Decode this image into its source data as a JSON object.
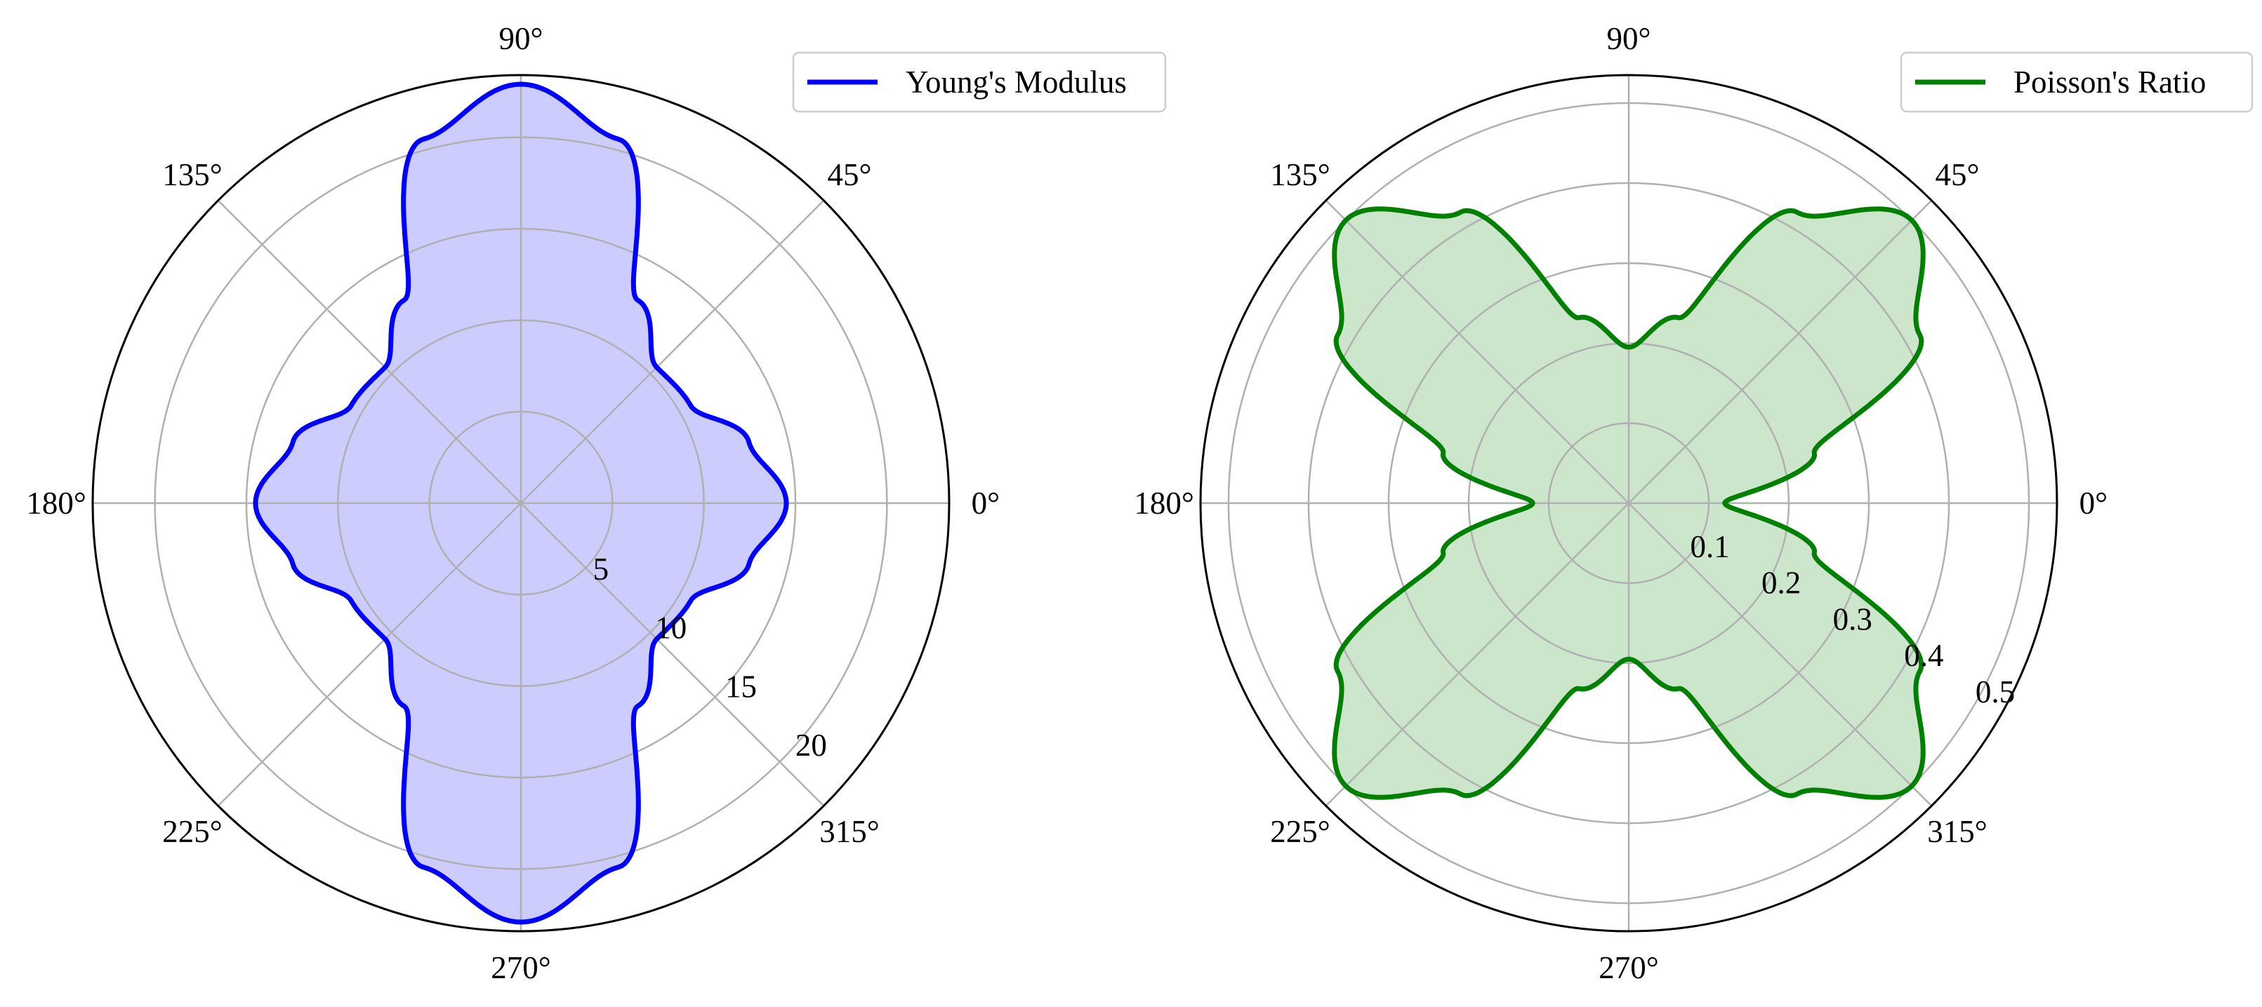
{
  "chart_data": [
    {
      "type": "polar",
      "angle_ticks_deg": [
        0,
        45,
        90,
        135,
        180,
        225,
        270,
        315
      ],
      "angle_tick_labels": [
        "0°",
        "45°",
        "90°",
        "135°",
        "180°",
        "225°",
        "270°",
        "315°"
      ],
      "r_ticks": [
        5,
        10,
        15,
        20
      ],
      "r_tick_labels": [
        "5",
        "10",
        "15",
        "20"
      ],
      "rlim": [
        0,
        23.4
      ],
      "grid": true,
      "legend_placement": "top-right",
      "series": [
        {
          "name": "Young's Modulus",
          "color": "#0000ff",
          "fill_color": "#ccccff",
          "theta_deg": [
            0,
            15,
            30,
            45,
            60,
            75,
            90,
            105,
            120,
            135,
            150,
            165,
            180,
            195,
            210,
            225,
            240,
            255,
            270,
            285,
            300,
            315,
            330,
            345,
            360
          ],
          "r": [
            14.5,
            12.9,
            10.7,
            10.5,
            12.8,
            20.6,
            22.9,
            20.6,
            12.8,
            10.5,
            10.7,
            12.9,
            14.5,
            12.9,
            10.7,
            10.5,
            12.8,
            20.6,
            22.9,
            20.6,
            12.8,
            10.5,
            10.7,
            12.9,
            14.5
          ]
        }
      ]
    },
    {
      "type": "polar",
      "angle_ticks_deg": [
        0,
        45,
        90,
        135,
        180,
        225,
        270,
        315
      ],
      "angle_tick_labels": [
        "0°",
        "45°",
        "90°",
        "135°",
        "180°",
        "225°",
        "270°",
        "315°"
      ],
      "r_ticks": [
        0.1,
        0.2,
        0.3,
        0.4,
        0.5
      ],
      "r_tick_labels": [
        "0.1",
        "0.2",
        "0.3",
        "0.4",
        "0.5"
      ],
      "rlim": [
        0,
        0.535
      ],
      "grid": true,
      "legend_placement": "top-right",
      "series": [
        {
          "name": "Poisson's Ratio",
          "color": "#008000",
          "fill_color": "#cce6cc",
          "theta_deg": [
            0,
            15,
            30,
            45,
            60,
            75,
            90,
            105,
            120,
            135,
            150,
            165,
            180,
            195,
            210,
            225,
            240,
            255,
            270,
            285,
            300,
            315,
            330,
            345,
            360
          ],
          "r": [
            0.12,
            0.24,
            0.42,
            0.5,
            0.42,
            0.24,
            0.195,
            0.24,
            0.42,
            0.5,
            0.42,
            0.24,
            0.12,
            0.24,
            0.42,
            0.5,
            0.42,
            0.24,
            0.195,
            0.24,
            0.42,
            0.5,
            0.42,
            0.24,
            0.12
          ]
        }
      ]
    }
  ]
}
